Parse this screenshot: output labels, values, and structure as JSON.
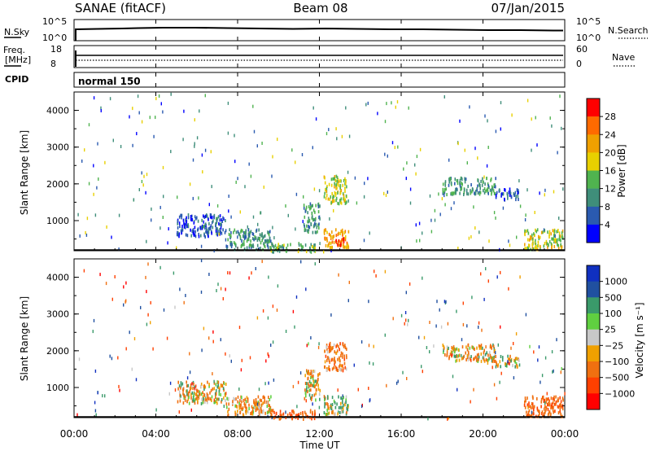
{
  "header": {
    "title_left": "SANAE (fitACF)",
    "title_center": "Beam 08",
    "title_right": "07/Jan/2015"
  },
  "nsky_panel": {
    "left_label": "N.Sky",
    "right_label": "N.Search",
    "left_ticks": [
      "10^5",
      "10^0"
    ],
    "right_ticks": [
      "10^5",
      "10^0"
    ]
  },
  "freq_panel": {
    "left_label_1": "Freq.",
    "left_label_2": "[MHz]",
    "left_ticks": [
      "18",
      "8"
    ],
    "right_label": "Nave",
    "right_ticks": [
      "60",
      "0"
    ]
  },
  "cpid": {
    "label": "CPID",
    "value": "normal 150"
  },
  "chart_data": [
    {
      "type": "heatmap",
      "name": "power",
      "ylabel": "Slant Range [km]",
      "ylim": [
        180,
        4500
      ],
      "yticks": [
        "1000",
        "2000",
        "3000",
        "4000"
      ],
      "colorbar_label": "Power [dB]",
      "colorbar_ticks": [
        "4",
        "8",
        "12",
        "16",
        "20",
        "24",
        "28"
      ],
      "colorbar_colors": [
        "#0000ff",
        "#2a5ab0",
        "#3f8e7a",
        "#50b34f",
        "#e8d000",
        "#f0a000",
        "#ff6a00",
        "#ff0000"
      ],
      "scatter_regions": [
        {
          "t": [
            5.0,
            7.4
          ],
          "r": [
            600,
            1200
          ],
          "value": 6
        },
        {
          "t": [
            7.4,
            9.6
          ],
          "r": [
            250,
            800
          ],
          "value": 10
        },
        {
          "t": [
            9.6,
            11.8
          ],
          "r": [
            180,
            420
          ],
          "value": 13
        },
        {
          "t": [
            11.2,
            12.0
          ],
          "r": [
            700,
            1500
          ],
          "value": 11
        },
        {
          "t": [
            12.2,
            13.3
          ],
          "r": [
            1500,
            2250
          ],
          "value": 17
        },
        {
          "t": [
            12.2,
            13.4
          ],
          "r": [
            300,
            800
          ],
          "value": 22
        },
        {
          "t": [
            12.7,
            13.2
          ],
          "r": [
            330,
            560
          ],
          "value": 29
        },
        {
          "t": [
            18.0,
            20.6
          ],
          "r": [
            1750,
            2200
          ],
          "value": 11
        },
        {
          "t": [
            20.6,
            21.8
          ],
          "r": [
            1600,
            1900
          ],
          "value": 6
        },
        {
          "t": [
            22.0,
            23.9
          ],
          "r": [
            250,
            800
          ],
          "value": 17
        }
      ]
    },
    {
      "type": "heatmap",
      "name": "velocity",
      "ylabel": "Slant Range [km]",
      "ylim": [
        180,
        4500
      ],
      "yticks": [
        "1000",
        "2000",
        "3000",
        "4000"
      ],
      "colorbar_label": "Velocity [m s⁻¹]",
      "colorbar_ticks": [
        "1000",
        "500",
        "100",
        "25",
        "−25",
        "−100",
        "−500",
        "−1000"
      ],
      "colorbar_colors": [
        "#1030c0",
        "#2050a0",
        "#3a9a6a",
        "#60d040",
        "#c8c8c8",
        "#f0a000",
        "#f07010",
        "#ff4000",
        "#ff0000"
      ],
      "scatter_regions": [
        {
          "t": [
            5.0,
            7.4
          ],
          "r": [
            600,
            1200
          ],
          "value": -100
        },
        {
          "t": [
            7.4,
            9.6
          ],
          "r": [
            250,
            800
          ],
          "value": -200
        },
        {
          "t": [
            9.6,
            11.8
          ],
          "r": [
            180,
            420
          ],
          "value": -400
        },
        {
          "t": [
            11.2,
            12.0
          ],
          "r": [
            700,
            1500
          ],
          "value": -100
        },
        {
          "t": [
            12.2,
            13.3
          ],
          "r": [
            1500,
            2250
          ],
          "value": -300
        },
        {
          "t": [
            12.2,
            13.4
          ],
          "r": [
            300,
            800
          ],
          "value": 100
        },
        {
          "t": [
            18.0,
            20.6
          ],
          "r": [
            1750,
            2200
          ],
          "value": -100
        },
        {
          "t": [
            20.6,
            21.8
          ],
          "r": [
            1600,
            1900
          ],
          "value": 10
        },
        {
          "t": [
            22.0,
            23.9
          ],
          "r": [
            250,
            800
          ],
          "value": -400
        }
      ]
    }
  ],
  "time_axis": {
    "xlim": [
      0,
      24
    ],
    "ticks": [
      "00:00",
      "04:00",
      "08:00",
      "12:00",
      "16:00",
      "20:00",
      "00:00"
    ],
    "xlabel": "Time UT"
  }
}
